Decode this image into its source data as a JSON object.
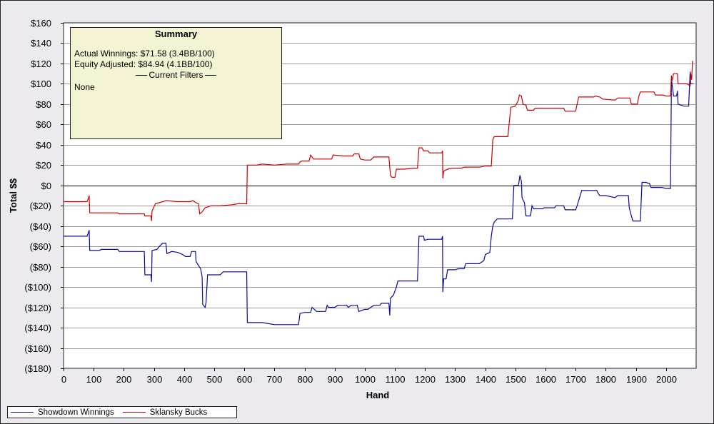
{
  "summary": {
    "title": "Summary",
    "actual_winnings": "Actual Winnings: $71.58 (3.4BB/100)",
    "equity_adjusted": "Equity Adjusted: $84.94 (4.1BB/100)",
    "filters_heading": "Current Filters",
    "filters_value": "None"
  },
  "colors": {
    "showdown": "#0a0a9a",
    "sklansky": "#cc0000",
    "grid": "#9a9a9a",
    "plot_bg": "#ffffff"
  },
  "chart_data": {
    "type": "line",
    "xlabel": "Hand",
    "ylabel": "Total $$",
    "xlim": [
      0,
      2100
    ],
    "ylim": [
      -180,
      160
    ],
    "x_ticks": [
      0,
      100,
      200,
      300,
      400,
      500,
      600,
      700,
      800,
      900,
      1000,
      1100,
      1200,
      1300,
      1400,
      1500,
      1600,
      1700,
      1800,
      1900,
      2000
    ],
    "y_ticks": [
      {
        "value": 160,
        "label": "$160"
      },
      {
        "value": 140,
        "label": "$140"
      },
      {
        "value": 120,
        "label": "$120"
      },
      {
        "value": 100,
        "label": "$100"
      },
      {
        "value": 80,
        "label": "$80"
      },
      {
        "value": 60,
        "label": "$60"
      },
      {
        "value": 40,
        "label": "$40"
      },
      {
        "value": 20,
        "label": "$20"
      },
      {
        "value": 0,
        "label": "$0"
      },
      {
        "value": -20,
        "label": "($20)"
      },
      {
        "value": -40,
        "label": "($40)"
      },
      {
        "value": -60,
        "label": "($60)"
      },
      {
        "value": -80,
        "label": "($80)"
      },
      {
        "value": -100,
        "label": "($100)"
      },
      {
        "value": -120,
        "label": "($120)"
      },
      {
        "value": -140,
        "label": "($140)"
      },
      {
        "value": -160,
        "label": "($160)"
      },
      {
        "value": -180,
        "label": "($180)"
      }
    ],
    "grid": true,
    "legend_position": "bottom-left",
    "series": [
      {
        "name": "Showdown Winnings",
        "color_key": "showdown",
        "points": [
          [
            0,
            -50
          ],
          [
            78,
            -50
          ],
          [
            82,
            -47
          ],
          [
            85,
            -44
          ],
          [
            87,
            -64
          ],
          [
            120,
            -64
          ],
          [
            125,
            -63
          ],
          [
            180,
            -63
          ],
          [
            185,
            -65
          ],
          [
            268,
            -65
          ],
          [
            270,
            -88
          ],
          [
            290,
            -88
          ],
          [
            292,
            -95
          ],
          [
            294,
            -64
          ],
          [
            310,
            -63
          ],
          [
            318,
            -60
          ],
          [
            328,
            -57
          ],
          [
            340,
            -57
          ],
          [
            343,
            -67
          ],
          [
            360,
            -65
          ],
          [
            380,
            -66
          ],
          [
            395,
            -68
          ],
          [
            405,
            -70
          ],
          [
            420,
            -70
          ],
          [
            425,
            -65
          ],
          [
            438,
            -65
          ],
          [
            440,
            -75
          ],
          [
            455,
            -82
          ],
          [
            460,
            -90
          ],
          [
            462,
            -117
          ],
          [
            470,
            -120
          ],
          [
            473,
            -115
          ],
          [
            478,
            -88
          ],
          [
            505,
            -88
          ],
          [
            520,
            -88
          ],
          [
            530,
            -85
          ],
          [
            608,
            -85
          ],
          [
            610,
            -135
          ],
          [
            640,
            -135
          ],
          [
            660,
            -135
          ],
          [
            700,
            -137
          ],
          [
            780,
            -137
          ],
          [
            785,
            -126
          ],
          [
            800,
            -125
          ],
          [
            820,
            -125
          ],
          [
            825,
            -120
          ],
          [
            840,
            -124
          ],
          [
            870,
            -124
          ],
          [
            875,
            -118
          ],
          [
            880,
            -120
          ],
          [
            900,
            -120
          ],
          [
            910,
            -118
          ],
          [
            940,
            -118
          ],
          [
            945,
            -120
          ],
          [
            955,
            -118
          ],
          [
            975,
            -118
          ],
          [
            980,
            -124
          ],
          [
            1000,
            -122
          ],
          [
            1010,
            -122
          ],
          [
            1020,
            -120
          ],
          [
            1030,
            -118
          ],
          [
            1050,
            -118
          ],
          [
            1055,
            -116
          ],
          [
            1080,
            -116
          ],
          [
            1083,
            -128
          ],
          [
            1085,
            -111
          ],
          [
            1095,
            -108
          ],
          [
            1100,
            -104
          ],
          [
            1105,
            -100
          ],
          [
            1110,
            -94
          ],
          [
            1175,
            -94
          ],
          [
            1180,
            -50
          ],
          [
            1195,
            -50
          ],
          [
            1198,
            -54
          ],
          [
            1210,
            -53
          ],
          [
            1255,
            -53
          ],
          [
            1258,
            -50
          ],
          [
            1259,
            -105
          ],
          [
            1262,
            -92
          ],
          [
            1270,
            -92
          ],
          [
            1275,
            -83
          ],
          [
            1300,
            -83
          ],
          [
            1310,
            -82
          ],
          [
            1330,
            -82
          ],
          [
            1335,
            -77
          ],
          [
            1380,
            -77
          ],
          [
            1395,
            -74
          ],
          [
            1400,
            -68
          ],
          [
            1415,
            -66
          ],
          [
            1420,
            -50
          ],
          [
            1425,
            -40
          ],
          [
            1430,
            -36
          ],
          [
            1440,
            -33
          ],
          [
            1490,
            -33
          ],
          [
            1495,
            0
          ],
          [
            1510,
            0
          ],
          [
            1515,
            10
          ],
          [
            1520,
            4
          ],
          [
            1522,
            -12
          ],
          [
            1530,
            -17
          ],
          [
            1535,
            -30
          ],
          [
            1550,
            -30
          ],
          [
            1555,
            -20
          ],
          [
            1560,
            -23
          ],
          [
            1590,
            -23
          ],
          [
            1595,
            -22
          ],
          [
            1630,
            -22
          ],
          [
            1635,
            -20
          ],
          [
            1660,
            -20
          ],
          [
            1665,
            -24
          ],
          [
            1700,
            -24
          ],
          [
            1705,
            -20
          ],
          [
            1720,
            -5
          ],
          [
            1770,
            -5
          ],
          [
            1775,
            -8
          ],
          [
            1780,
            -10
          ],
          [
            1800,
            -10
          ],
          [
            1830,
            -12
          ],
          [
            1840,
            -10
          ],
          [
            1875,
            -10
          ],
          [
            1878,
            -22
          ],
          [
            1885,
            -30
          ],
          [
            1890,
            -35
          ],
          [
            1915,
            -35
          ],
          [
            1920,
            3
          ],
          [
            1935,
            3
          ],
          [
            1940,
            2
          ],
          [
            1945,
            2
          ],
          [
            1950,
            -2
          ],
          [
            1985,
            -2
          ],
          [
            2000,
            -3
          ],
          [
            2015,
            -3
          ],
          [
            2018,
            105
          ],
          [
            2020,
            100
          ],
          [
            2025,
            88
          ],
          [
            2035,
            88
          ],
          [
            2038,
            93
          ],
          [
            2040,
            80
          ],
          [
            2060,
            78
          ],
          [
            2075,
            78
          ],
          [
            2080,
            112
          ],
          [
            2082,
            100
          ],
          [
            2090,
            100
          ]
        ]
      },
      {
        "name": "Sklansky Bucks",
        "color_key": "sklansky",
        "points": [
          [
            0,
            -16
          ],
          [
            78,
            -16
          ],
          [
            82,
            -13
          ],
          [
            85,
            -10
          ],
          [
            87,
            -27
          ],
          [
            180,
            -27
          ],
          [
            185,
            -28
          ],
          [
            268,
            -28
          ],
          [
            270,
            -30
          ],
          [
            290,
            -30
          ],
          [
            292,
            -35
          ],
          [
            294,
            -25
          ],
          [
            305,
            -18
          ],
          [
            330,
            -16
          ],
          [
            340,
            -15
          ],
          [
            380,
            -16
          ],
          [
            400,
            -16
          ],
          [
            420,
            -16
          ],
          [
            430,
            -15
          ],
          [
            440,
            -17
          ],
          [
            448,
            -18
          ],
          [
            452,
            -28
          ],
          [
            460,
            -26
          ],
          [
            470,
            -22
          ],
          [
            480,
            -21
          ],
          [
            490,
            -20
          ],
          [
            520,
            -20
          ],
          [
            560,
            -19
          ],
          [
            580,
            -18
          ],
          [
            608,
            -18
          ],
          [
            610,
            20
          ],
          [
            640,
            20
          ],
          [
            660,
            21
          ],
          [
            700,
            20
          ],
          [
            740,
            21
          ],
          [
            780,
            21
          ],
          [
            785,
            23
          ],
          [
            790,
            24
          ],
          [
            815,
            24
          ],
          [
            820,
            30
          ],
          [
            830,
            26
          ],
          [
            860,
            26
          ],
          [
            890,
            26
          ],
          [
            895,
            30
          ],
          [
            930,
            29
          ],
          [
            960,
            29
          ],
          [
            965,
            31
          ],
          [
            980,
            31
          ],
          [
            985,
            26
          ],
          [
            1000,
            25
          ],
          [
            1020,
            25
          ],
          [
            1030,
            28
          ],
          [
            1080,
            28
          ],
          [
            1085,
            10
          ],
          [
            1090,
            8
          ],
          [
            1100,
            8
          ],
          [
            1105,
            16
          ],
          [
            1130,
            16
          ],
          [
            1160,
            17
          ],
          [
            1175,
            17
          ],
          [
            1180,
            37
          ],
          [
            1190,
            37
          ],
          [
            1195,
            34
          ],
          [
            1210,
            34
          ],
          [
            1215,
            32
          ],
          [
            1255,
            32
          ],
          [
            1258,
            34
          ],
          [
            1259,
            7
          ],
          [
            1262,
            14
          ],
          [
            1275,
            16
          ],
          [
            1290,
            17
          ],
          [
            1320,
            17
          ],
          [
            1330,
            18
          ],
          [
            1380,
            18
          ],
          [
            1400,
            19
          ],
          [
            1420,
            19
          ],
          [
            1425,
            45
          ],
          [
            1430,
            48
          ],
          [
            1475,
            48
          ],
          [
            1480,
            63
          ],
          [
            1485,
            77
          ],
          [
            1500,
            78
          ],
          [
            1510,
            84
          ],
          [
            1513,
            89
          ],
          [
            1520,
            88
          ],
          [
            1525,
            80
          ],
          [
            1535,
            79
          ],
          [
            1540,
            74
          ],
          [
            1560,
            74
          ],
          [
            1565,
            76
          ],
          [
            1640,
            76
          ],
          [
            1660,
            76
          ],
          [
            1665,
            73
          ],
          [
            1700,
            73
          ],
          [
            1705,
            80
          ],
          [
            1710,
            87
          ],
          [
            1760,
            87
          ],
          [
            1765,
            88
          ],
          [
            1780,
            87
          ],
          [
            1790,
            85
          ],
          [
            1830,
            84
          ],
          [
            1840,
            86
          ],
          [
            1880,
            86
          ],
          [
            1885,
            80
          ],
          [
            1905,
            80
          ],
          [
            1910,
            88
          ],
          [
            1915,
            92
          ],
          [
            1960,
            92
          ],
          [
            1965,
            89
          ],
          [
            1990,
            89
          ],
          [
            2000,
            88
          ],
          [
            2015,
            88
          ],
          [
            2018,
            108
          ],
          [
            2020,
            103
          ],
          [
            2025,
            110
          ],
          [
            2038,
            110
          ],
          [
            2040,
            100
          ],
          [
            2070,
            100
          ],
          [
            2080,
            98
          ],
          [
            2082,
            110
          ],
          [
            2085,
            104
          ],
          [
            2088,
            122
          ],
          [
            2090,
            122
          ]
        ]
      }
    ]
  }
}
